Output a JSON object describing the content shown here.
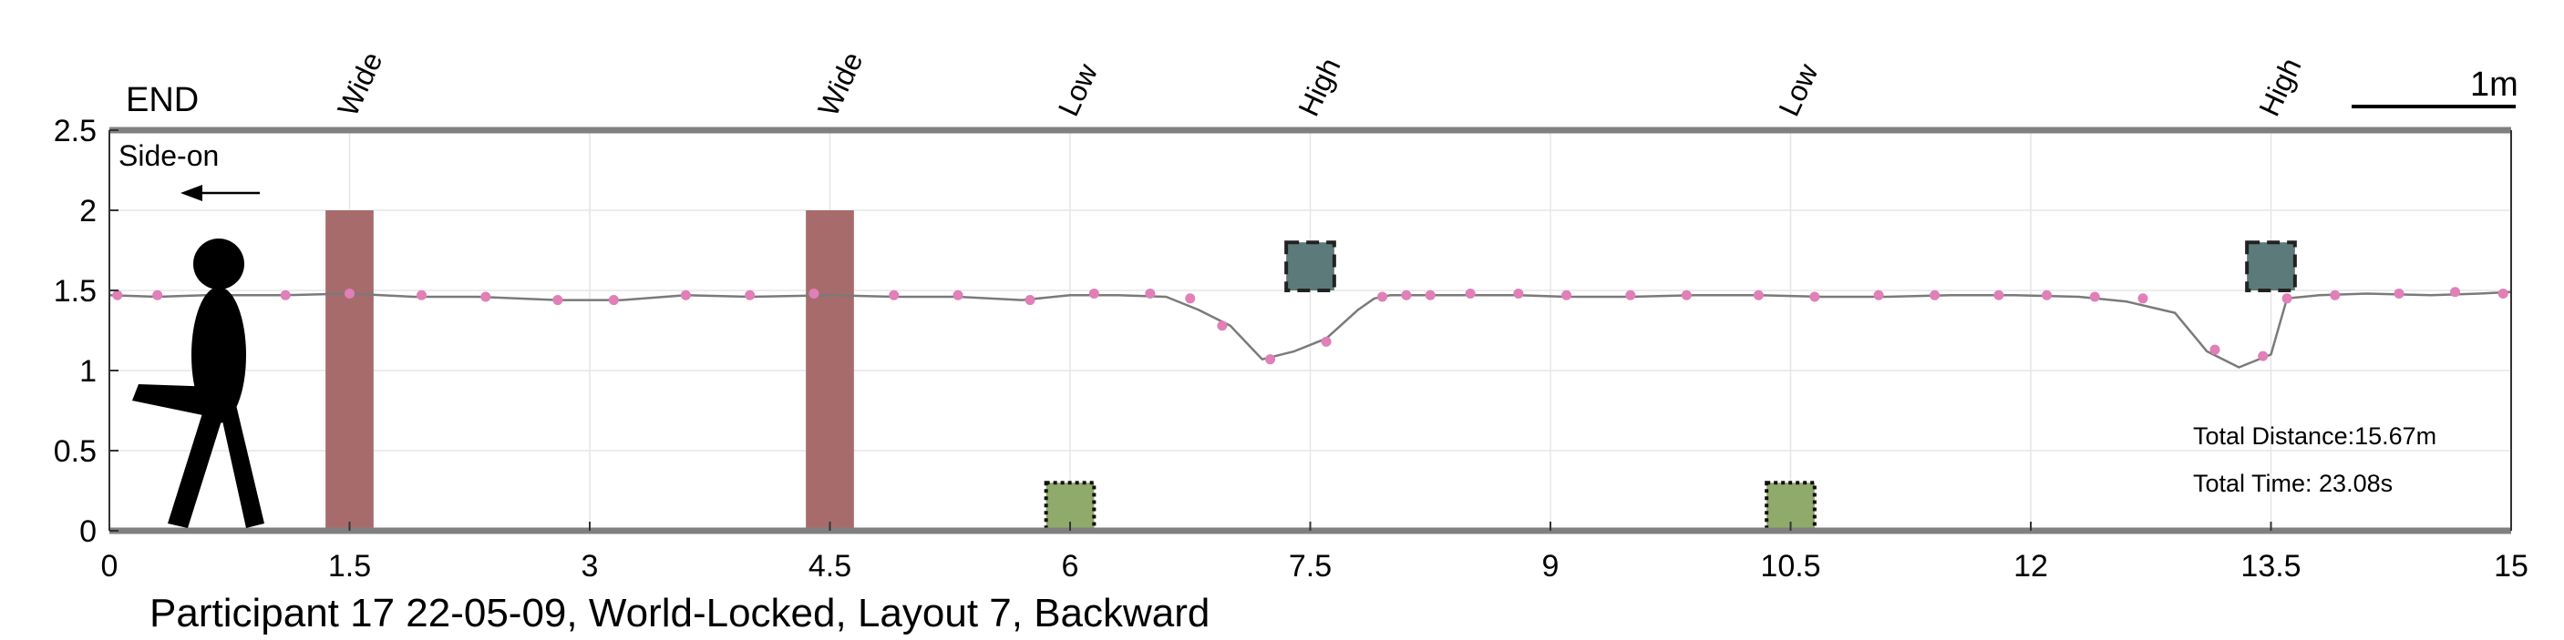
{
  "chart_data": {
    "type": "line",
    "title": "Participant 17 22-05-09, World-Locked, Layout 7, Backward",
    "xlabel": "",
    "ylabel": "",
    "xlim": [
      0,
      15
    ],
    "ylim": [
      0,
      2.5
    ],
    "x_ticks": [
      "0",
      "1.5",
      "3",
      "4.5",
      "6",
      "7.5",
      "9",
      "10.5",
      "12",
      "13.5",
      "15"
    ],
    "y_ticks": [
      "0",
      "0.5",
      "1",
      "1.5",
      "2",
      "2.5"
    ],
    "grid": true,
    "end_label": "END",
    "scale_label": "1m",
    "scale_bar_length_m": 1,
    "direction_label": "Side-on",
    "total_distance": "Total Distance:15.67m",
    "total_time": "Total Time: 23.08s",
    "colors": {
      "path_line": "#7a7a7a",
      "markers": "#e07fb8",
      "wide_obstacle": "#a86b6b",
      "high_obstacle": "#5d7a7a",
      "low_obstacle": "#8faa6a",
      "axis": "#808080",
      "figure": "#000000"
    },
    "obstacles": [
      {
        "label": "Wide",
        "kind": "wide",
        "x": 1.5,
        "y_bottom": 0,
        "y_top": 2.0,
        "width": 0.3
      },
      {
        "label": "Wide",
        "kind": "wide",
        "x": 4.5,
        "y_bottom": 0,
        "y_top": 2.0,
        "width": 0.3
      },
      {
        "label": "Low",
        "kind": "low",
        "x": 6.0,
        "y_bottom": 0,
        "y_top": 0.3,
        "width": 0.3
      },
      {
        "label": "High",
        "kind": "high",
        "x": 7.5,
        "y_bottom": 1.5,
        "y_top": 1.8,
        "width": 0.3
      },
      {
        "label": "Low",
        "kind": "low",
        "x": 10.5,
        "y_bottom": 0,
        "y_top": 0.3,
        "width": 0.3
      },
      {
        "label": "High",
        "kind": "high",
        "x": 13.5,
        "y_bottom": 1.5,
        "y_top": 1.8,
        "width": 0.3
      }
    ],
    "series": [
      {
        "x": [
          0,
          0.3,
          0.6,
          0.9,
          1.1,
          1.5,
          1.9,
          2.3,
          2.8,
          3.2,
          3.6,
          4.0,
          4.5,
          4.9,
          5.3,
          5.7,
          6.0,
          6.3,
          6.6,
          6.8,
          7.0,
          7.2,
          7.4,
          7.6,
          7.8,
          7.9,
          8.0,
          8.2,
          8.5,
          8.8,
          9.1,
          9.5,
          9.9,
          10.3,
          10.7,
          11.1,
          11.5,
          11.9,
          12.3,
          12.6,
          12.9,
          13.1,
          13.3,
          13.5,
          13.6,
          13.8,
          14.1,
          14.5,
          14.8,
          15.0
        ],
        "y": [
          1.47,
          1.46,
          1.47,
          1.47,
          1.47,
          1.48,
          1.46,
          1.46,
          1.44,
          1.44,
          1.47,
          1.46,
          1.47,
          1.46,
          1.46,
          1.44,
          1.47,
          1.47,
          1.46,
          1.38,
          1.28,
          1.07,
          1.12,
          1.2,
          1.38,
          1.45,
          1.47,
          1.47,
          1.47,
          1.47,
          1.46,
          1.46,
          1.47,
          1.47,
          1.46,
          1.46,
          1.47,
          1.47,
          1.46,
          1.43,
          1.36,
          1.12,
          1.02,
          1.1,
          1.45,
          1.47,
          1.48,
          1.47,
          1.48,
          1.49
        ]
      }
    ],
    "markers": {
      "x": [
        0.05,
        0.3,
        1.1,
        1.5,
        1.95,
        2.35,
        2.8,
        3.15,
        3.6,
        4.0,
        4.4,
        4.9,
        5.3,
        5.75,
        6.15,
        6.5,
        6.75,
        6.95,
        7.25,
        7.6,
        7.95,
        8.1,
        8.25,
        8.5,
        8.8,
        9.1,
        9.5,
        9.85,
        10.3,
        10.65,
        11.05,
        11.4,
        11.8,
        12.1,
        12.4,
        12.7,
        13.15,
        13.45,
        13.6,
        13.9,
        14.3,
        14.65,
        14.95
      ],
      "y": [
        1.47,
        1.47,
        1.47,
        1.48,
        1.47,
        1.46,
        1.44,
        1.44,
        1.47,
        1.47,
        1.48,
        1.47,
        1.47,
        1.44,
        1.48,
        1.48,
        1.45,
        1.28,
        1.07,
        1.18,
        1.46,
        1.47,
        1.47,
        1.48,
        1.48,
        1.47,
        1.47,
        1.47,
        1.47,
        1.46,
        1.47,
        1.47,
        1.47,
        1.47,
        1.46,
        1.45,
        1.13,
        1.09,
        1.45,
        1.47,
        1.48,
        1.49,
        1.48
      ]
    }
  }
}
